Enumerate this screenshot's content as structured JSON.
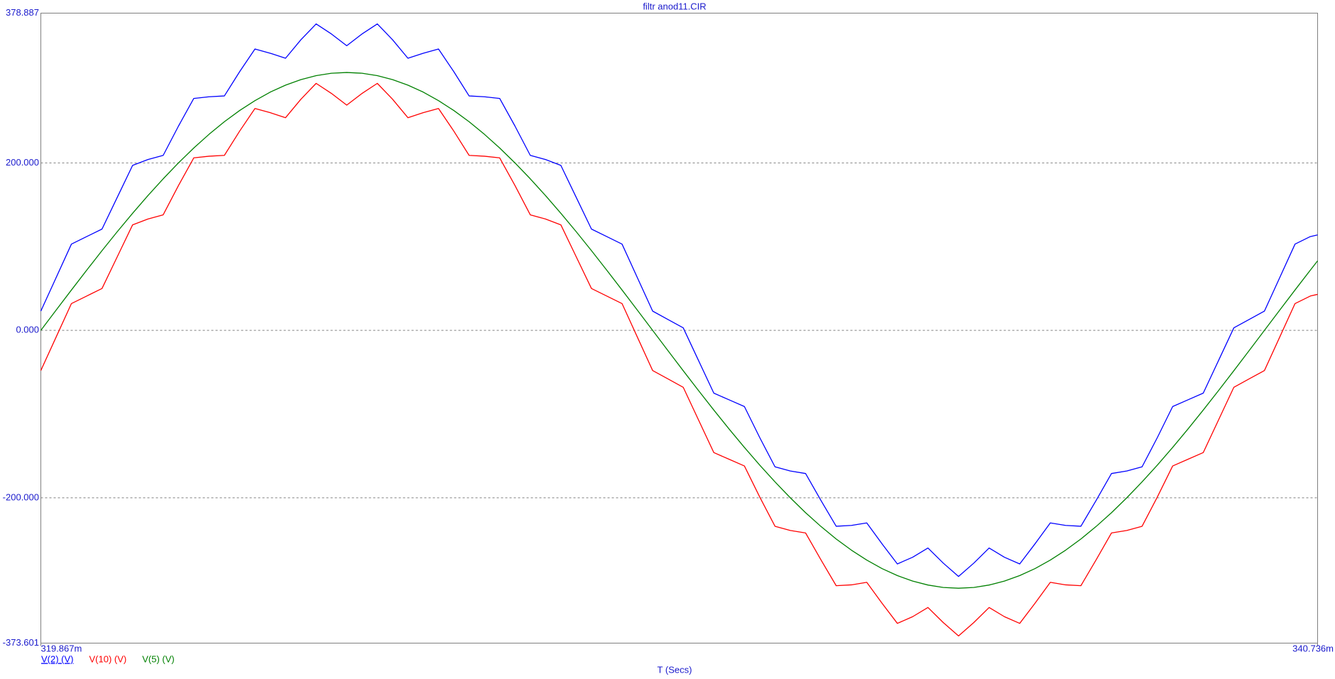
{
  "chart_data": {
    "type": "line",
    "title": "filtr anod11.CIR",
    "x_label": "T (Secs)",
    "xlim": [
      0.319867,
      0.340736
    ],
    "xticks": [
      {
        "value": 0.319867,
        "label": "319.867m"
      },
      {
        "value": 0.340736,
        "label": "340.736m"
      }
    ],
    "ylim": [
      -373.601,
      378.887
    ],
    "yticks": [
      {
        "value": 378.887,
        "label": "378.887"
      },
      {
        "value": 200,
        "label": "200.000"
      },
      {
        "value": 0,
        "label": "0.000"
      },
      {
        "value": -200,
        "label": "-200.000"
      },
      {
        "value": -373.601,
        "label": "-373.601"
      }
    ],
    "grid": true,
    "x": [
      0.319867,
      0.320117,
      0.320367,
      0.320617,
      0.320867,
      0.321117,
      0.321367,
      0.321617,
      0.321867,
      0.322117,
      0.322367,
      0.322617,
      0.322867,
      0.323117,
      0.323367,
      0.323617,
      0.323867,
      0.324117,
      0.324367,
      0.324617,
      0.324867,
      0.325117,
      0.325367,
      0.325617,
      0.325867,
      0.326117,
      0.326367,
      0.326617,
      0.326867,
      0.327117,
      0.327367,
      0.327617,
      0.327867,
      0.328117,
      0.328367,
      0.328617,
      0.328867,
      0.329117,
      0.329367,
      0.329617,
      0.329867,
      0.330117,
      0.330367,
      0.330617,
      0.330867,
      0.331117,
      0.331367,
      0.331617,
      0.331867,
      0.332117,
      0.332367,
      0.332617,
      0.332867,
      0.333117,
      0.333367,
      0.333617,
      0.333867,
      0.334117,
      0.334367,
      0.334617,
      0.334867,
      0.335117,
      0.335367,
      0.335617,
      0.335867,
      0.336117,
      0.336367,
      0.336617,
      0.336867,
      0.337117,
      0.337367,
      0.337617,
      0.337867,
      0.338117,
      0.338367,
      0.338617,
      0.338867,
      0.339117,
      0.339367,
      0.339617,
      0.339867,
      0.340117,
      0.340367,
      0.340617,
      0.340736
    ],
    "series": [
      {
        "name": "V(2) (V)",
        "color": "#0000ff",
        "values": [
          23,
          63,
          103,
          112,
          121,
          159,
          197,
          204,
          209,
          244,
          277,
          279,
          280,
          309,
          336,
          331,
          325,
          347,
          366,
          354,
          340,
          354,
          366,
          347,
          325,
          331,
          336,
          309,
          280,
          279,
          277,
          244,
          209,
          204,
          197,
          159,
          121,
          112,
          103,
          63,
          23,
          13,
          3,
          -36,
          -75,
          -83,
          -91,
          -128,
          -163,
          -168,
          -171,
          -203,
          -234,
          -233,
          -230,
          -255,
          -279,
          -271,
          -260,
          -278,
          -294,
          -278,
          -260,
          -271,
          -279,
          -255,
          -230,
          -233,
          -234,
          -203,
          -171,
          -168,
          -163,
          -128,
          -91,
          -83,
          -75,
          -36,
          3,
          13,
          23,
          63,
          103,
          112,
          114
        ]
      },
      {
        "name": "V(10) (V)",
        "color": "#ff0000",
        "values": [
          -48,
          -8,
          32,
          41,
          50,
          88,
          126,
          133,
          138,
          173,
          206,
          208,
          209,
          238,
          265,
          260,
          254,
          276,
          295,
          283,
          269,
          283,
          295,
          276,
          254,
          260,
          265,
          238,
          209,
          208,
          206,
          173,
          138,
          133,
          126,
          88,
          50,
          41,
          32,
          -8,
          -48,
          -58,
          -68,
          -107,
          -146,
          -154,
          -162,
          -199,
          -234,
          -239,
          -242,
          -274,
          -305,
          -304,
          -301,
          -326,
          -350,
          -342,
          -331,
          -349,
          -365,
          -349,
          -331,
          -342,
          -350,
          -326,
          -301,
          -304,
          -305,
          -274,
          -242,
          -239,
          -234,
          -199,
          -162,
          -154,
          -146,
          -107,
          -68,
          -58,
          -48,
          -8,
          32,
          41,
          43
        ]
      },
      {
        "name": "V(5) (V)",
        "color": "#008000",
        "values": [
          0,
          24.2,
          48.2,
          71.9,
          95.2,
          117.9,
          139.8,
          160.9,
          181.0,
          200.0,
          217.8,
          234.2,
          249.2,
          262.6,
          274.4,
          284.6,
          292.9,
          299.5,
          304.2,
          307.1,
          308,
          307.1,
          304.2,
          299.5,
          292.9,
          284.6,
          274.4,
          262.6,
          249.2,
          234.2,
          217.8,
          200.0,
          181.0,
          160.9,
          139.8,
          117.9,
          95.2,
          71.9,
          48.2,
          24.2,
          0,
          -24.2,
          -48.2,
          -71.9,
          -95.2,
          -117.9,
          -139.8,
          -160.9,
          -181.0,
          -200.0,
          -217.8,
          -234.2,
          -249.2,
          -262.6,
          -274.4,
          -284.6,
          -292.9,
          -299.5,
          -304.2,
          -307.1,
          -308,
          -307.1,
          -304.2,
          -299.5,
          -292.9,
          -284.6,
          -274.4,
          -262.6,
          -249.2,
          -234.2,
          -217.8,
          -200.0,
          -181.0,
          -160.9,
          -139.8,
          -117.9,
          -95.2,
          -71.9,
          -48.2,
          -24.2,
          0,
          24.2,
          48.2,
          71.9,
          83.0
        ]
      }
    ]
  }
}
